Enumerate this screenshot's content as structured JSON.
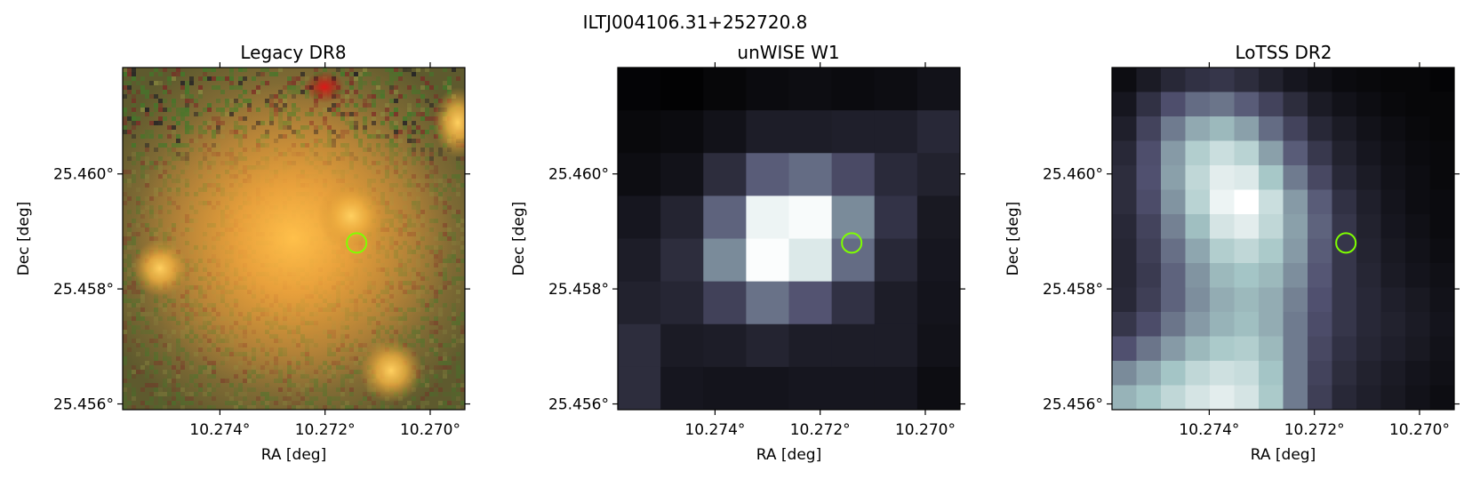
{
  "figure": {
    "title": "ILTJ004106.31+252720.8",
    "marker_color": "#7fff00"
  },
  "chart_data": [
    {
      "type": "heatmap",
      "title": "Legacy DR8",
      "xlabel": "RA [deg]",
      "ylabel": "Dec [deg]",
      "x_ticks": [
        "10.274°",
        "10.272°",
        "10.270°"
      ],
      "y_ticks": [
        "25.460°",
        "25.458°",
        "25.456°"
      ],
      "x_tick_values": [
        10.274,
        10.272,
        10.27
      ],
      "y_tick_values": [
        25.46,
        25.458,
        25.456
      ],
      "xlim": [
        10.27585,
        10.26934
      ],
      "ylim": [
        25.4559,
        25.46185
      ],
      "colormap": "rgb composite",
      "marker": {
        "ra": 10.2714,
        "dec": 25.4588,
        "shape": "circle"
      }
    },
    {
      "type": "heatmap",
      "title": "unWISE W1",
      "xlabel": "RA [deg]",
      "ylabel": "Dec [deg]",
      "x_ticks": [
        "10.274°",
        "10.272°",
        "10.270°"
      ],
      "y_ticks": [
        "25.460°",
        "25.458°",
        "25.456°"
      ],
      "x_tick_values": [
        10.274,
        10.272,
        10.27
      ],
      "y_tick_values": [
        25.46,
        25.458,
        25.456
      ],
      "xlim": [
        10.27585,
        10.26934
      ],
      "ylim": [
        25.4559,
        25.46185
      ],
      "colormap": "bone",
      "values": [
        [
          0.02,
          0.01,
          0.03,
          0.05,
          0.06,
          0.05,
          0.06,
          0.08
        ],
        [
          0.04,
          0.05,
          0.08,
          0.13,
          0.13,
          0.14,
          0.14,
          0.18
        ],
        [
          0.06,
          0.08,
          0.2,
          0.4,
          0.45,
          0.33,
          0.19,
          0.15
        ],
        [
          0.1,
          0.16,
          0.42,
          0.95,
          0.98,
          0.55,
          0.23,
          0.11
        ],
        [
          0.13,
          0.2,
          0.55,
          0.99,
          0.9,
          0.45,
          0.18,
          0.1
        ],
        [
          0.15,
          0.17,
          0.29,
          0.47,
          0.37,
          0.22,
          0.13,
          0.09
        ],
        [
          0.2,
          0.12,
          0.13,
          0.16,
          0.13,
          0.13,
          0.13,
          0.08
        ],
        [
          0.2,
          0.1,
          0.09,
          0.09,
          0.1,
          0.1,
          0.1,
          0.06
        ]
      ],
      "marker": {
        "ra": 10.2714,
        "dec": 25.4588,
        "shape": "circle"
      }
    },
    {
      "type": "heatmap",
      "title": "LoTSS DR2",
      "xlabel": "RA [deg]",
      "ylabel": "Dec [deg]",
      "x_ticks": [
        "10.274°",
        "10.272°",
        "10.270°"
      ],
      "y_ticks": [
        "25.460°",
        "25.458°",
        "25.456°"
      ],
      "x_tick_values": [
        10.274,
        10.272,
        10.27
      ],
      "y_tick_values": [
        25.46,
        25.458,
        25.456
      ],
      "xlim": [
        10.27585,
        10.26934
      ],
      "ylim": [
        25.4559,
        25.46185
      ],
      "colormap": "bone",
      "values": [
        [
          0.06,
          0.12,
          0.18,
          0.22,
          0.24,
          0.2,
          0.15,
          0.1,
          0.07,
          0.05,
          0.04,
          0.03,
          0.03,
          0.02
        ],
        [
          0.1,
          0.22,
          0.35,
          0.45,
          0.48,
          0.4,
          0.3,
          0.2,
          0.12,
          0.08,
          0.06,
          0.04,
          0.03,
          0.03
        ],
        [
          0.14,
          0.3,
          0.5,
          0.65,
          0.7,
          0.62,
          0.45,
          0.3,
          0.18,
          0.12,
          0.08,
          0.06,
          0.04,
          0.03
        ],
        [
          0.18,
          0.35,
          0.6,
          0.78,
          0.85,
          0.8,
          0.62,
          0.4,
          0.25,
          0.15,
          0.1,
          0.07,
          0.05,
          0.04
        ],
        [
          0.2,
          0.36,
          0.62,
          0.82,
          0.92,
          0.9,
          0.75,
          0.5,
          0.32,
          0.18,
          0.12,
          0.08,
          0.06,
          0.04
        ],
        [
          0.2,
          0.34,
          0.58,
          0.8,
          0.95,
          1.0,
          0.85,
          0.6,
          0.4,
          0.22,
          0.14,
          0.09,
          0.06,
          0.05
        ],
        [
          0.18,
          0.3,
          0.52,
          0.72,
          0.88,
          0.92,
          0.82,
          0.62,
          0.42,
          0.24,
          0.15,
          0.1,
          0.07,
          0.05
        ],
        [
          0.17,
          0.28,
          0.46,
          0.64,
          0.78,
          0.82,
          0.76,
          0.6,
          0.4,
          0.24,
          0.16,
          0.11,
          0.08,
          0.06
        ],
        [
          0.17,
          0.26,
          0.42,
          0.58,
          0.7,
          0.74,
          0.7,
          0.56,
          0.38,
          0.24,
          0.17,
          0.12,
          0.09,
          0.07
        ],
        [
          0.18,
          0.28,
          0.42,
          0.56,
          0.66,
          0.7,
          0.66,
          0.52,
          0.36,
          0.24,
          0.18,
          0.14,
          0.11,
          0.08
        ],
        [
          0.24,
          0.34,
          0.48,
          0.6,
          0.68,
          0.72,
          0.66,
          0.5,
          0.34,
          0.24,
          0.18,
          0.15,
          0.12,
          0.09
        ],
        [
          0.36,
          0.48,
          0.6,
          0.7,
          0.76,
          0.78,
          0.7,
          0.5,
          0.32,
          0.22,
          0.17,
          0.14,
          0.11,
          0.08
        ],
        [
          0.55,
          0.64,
          0.74,
          0.82,
          0.86,
          0.84,
          0.74,
          0.5,
          0.3,
          0.2,
          0.15,
          0.12,
          0.09,
          0.07
        ],
        [
          0.68,
          0.74,
          0.82,
          0.88,
          0.92,
          0.88,
          0.76,
          0.5,
          0.28,
          0.18,
          0.14,
          0.11,
          0.08,
          0.06
        ]
      ],
      "marker": {
        "ra": 10.2714,
        "dec": 25.4588,
        "shape": "circle"
      }
    }
  ]
}
